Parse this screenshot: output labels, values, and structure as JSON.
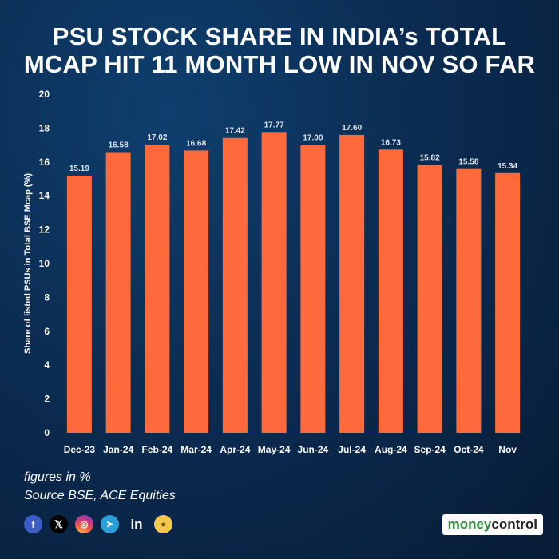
{
  "title_lines": [
    "PSU STOCK SHARE IN INDIA’s TOTAL",
    "MCAP HIT 11 MONTH LOW IN NOV SO FAR"
  ],
  "notes": {
    "units": "figures in %",
    "source": "Source BSE, ACE Equities"
  },
  "footer": {
    "social_icons": [
      "facebook-icon",
      "x-icon",
      "instagram-icon",
      "telegram-icon",
      "linkedin-icon",
      "koo-icon"
    ],
    "brand_part1": "money",
    "brand_part2": "control"
  },
  "colors": {
    "bar": "#ff6a3d",
    "background": "#0b2c52",
    "text": "#ffffff"
  },
  "chart_data": {
    "type": "bar",
    "title": "PSU STOCK SHARE IN INDIA’s TOTAL MCAP HIT 11 MONTH LOW IN NOV SO FAR",
    "categories": [
      "Dec-23",
      "Jan-24",
      "Feb-24",
      "Mar-24",
      "Apr-24",
      "May-24",
      "Jun-24",
      "Jul-24",
      "Aug-24",
      "Sep-24",
      "Oct-24",
      "Nov"
    ],
    "values": [
      15.19,
      16.58,
      17.02,
      16.68,
      17.42,
      17.77,
      17.0,
      17.6,
      16.73,
      15.82,
      15.58,
      15.34
    ],
    "value_labels": [
      "15.19",
      "16.58",
      "17.02",
      "16.68",
      "17.42",
      "17.77",
      "17.00",
      "17.60",
      "16.73",
      "15.82",
      "15.58",
      "15.34"
    ],
    "xlabel": "",
    "ylabel": "Share of listed PSUs in Total BSE Mcap (%)",
    "ylim": [
      0,
      20
    ],
    "yticks": [
      "0",
      "2",
      "4",
      "6",
      "8",
      "10",
      "12",
      "14",
      "16",
      "18",
      "20"
    ],
    "grid": false,
    "legend": "none"
  }
}
